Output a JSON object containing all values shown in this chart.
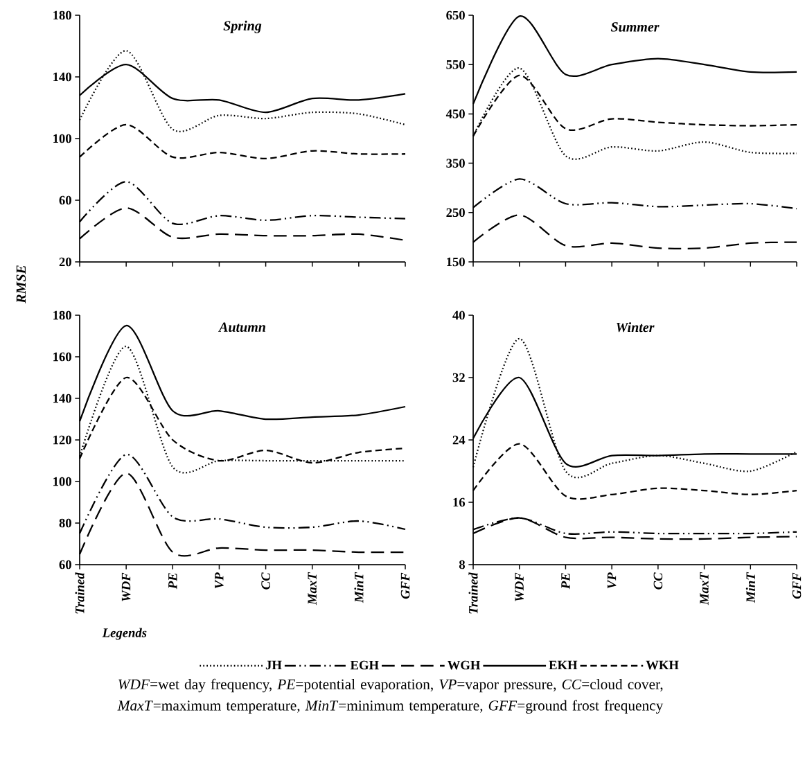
{
  "chart_data": [
    {
      "type": "line",
      "title": "Spring",
      "categories": [
        null,
        null,
        null,
        null,
        null,
        null,
        null,
        null
      ],
      "ylim": [
        20,
        180
      ],
      "yticks": [
        20,
        60,
        100,
        140,
        180
      ],
      "series": [
        {
          "color": "#000000",
          "line_style": "dotted",
          "values": [
            112,
            157,
            106,
            115,
            113,
            117,
            116,
            109
          ]
        },
        {
          "color": "#000000",
          "line_style": "dashdotdot",
          "values": [
            46,
            72,
            45,
            50,
            47,
            50,
            49,
            48
          ]
        },
        {
          "color": "#000000",
          "line_style": "longdashed",
          "values": [
            35,
            55,
            36,
            38,
            37,
            37,
            38,
            34
          ]
        },
        {
          "color": "#000000",
          "line_style": "solid",
          "values": [
            128,
            148,
            126,
            125,
            117,
            126,
            125,
            129
          ]
        },
        {
          "color": "#000000",
          "line_style": "dashed",
          "values": [
            88,
            109,
            88,
            91,
            87,
            92,
            90,
            90
          ]
        }
      ]
    },
    {
      "type": "line",
      "title": "Summer",
      "categories": [
        null,
        null,
        null,
        null,
        null,
        null,
        null,
        null
      ],
      "ylim": [
        150,
        650
      ],
      "yticks": [
        150,
        250,
        350,
        450,
        550,
        650
      ],
      "series": [
        {
          "color": "#000000",
          "line_style": "dotted",
          "values": [
            405,
            543,
            365,
            383,
            375,
            393,
            372,
            370
          ]
        },
        {
          "color": "#000000",
          "line_style": "dashdotdot",
          "values": [
            260,
            318,
            268,
            270,
            262,
            265,
            268,
            258
          ]
        },
        {
          "color": "#000000",
          "line_style": "longdashed",
          "values": [
            190,
            245,
            183,
            188,
            178,
            178,
            188,
            190
          ]
        },
        {
          "color": "#000000",
          "line_style": "solid",
          "values": [
            470,
            648,
            530,
            550,
            562,
            550,
            535,
            535
          ]
        },
        {
          "color": "#000000",
          "line_style": "dashed",
          "values": [
            405,
            528,
            420,
            440,
            433,
            428,
            426,
            428
          ]
        }
      ]
    },
    {
      "type": "line",
      "title": "Autumn",
      "ylabel": "RMSE",
      "legend_title": "Legends",
      "legend": "bottom",
      "categories": [
        "Trained",
        "WDF",
        "PE",
        "VP",
        "CC",
        "MaxT",
        "MinT",
        "GFF"
      ],
      "ylim": [
        60,
        180
      ],
      "yticks": [
        60,
        80,
        100,
        120,
        140,
        160,
        180
      ],
      "series": [
        {
          "name": "JH",
          "color": "#000000",
          "line_style": "dotted",
          "values": [
            112,
            165,
            107,
            110,
            110,
            110,
            110,
            110
          ]
        },
        {
          "name": "EGH",
          "color": "#000000",
          "line_style": "dashdotdot",
          "values": [
            75,
            113,
            83,
            82,
            78,
            78,
            81,
            77
          ]
        },
        {
          "name": "WGH",
          "color": "#000000",
          "line_style": "longdashed",
          "values": [
            65,
            104,
            66,
            68,
            67,
            67,
            66,
            66
          ]
        },
        {
          "name": "EKH",
          "color": "#000000",
          "line_style": "solid",
          "values": [
            129,
            175,
            134,
            134,
            130,
            131,
            132,
            136
          ]
        },
        {
          "name": "WKH",
          "color": "#000000",
          "line_style": "dashed",
          "values": [
            111,
            150,
            120,
            110,
            115,
            109,
            114,
            116
          ]
        }
      ],
      "annotations": [
        "*WDF*=wet day frequency, *PE*=potential evaporation, *VP*=vapor pressure, *CC*=cloud cover, *MaxT*=maximum temperature, *MinT*=minimum temperature, *GFF*=ground frost frequency"
      ]
    },
    {
      "type": "line",
      "title": "Winter",
      "categories": [
        "Trained",
        "WDF",
        "PE",
        "VP",
        "CC",
        "MaxT",
        "MinT",
        "GFF"
      ],
      "ylim": [
        8,
        40
      ],
      "yticks": [
        8,
        16,
        24,
        32,
        40
      ],
      "series": [
        {
          "color": "#000000",
          "line_style": "dotted",
          "values": [
            20.5,
            37,
            20,
            21,
            22,
            21,
            20,
            22.5
          ]
        },
        {
          "color": "#000000",
          "line_style": "dashdotdot",
          "values": [
            12.5,
            14,
            12,
            12.2,
            12,
            12,
            12,
            12.2
          ]
        },
        {
          "color": "#000000",
          "line_style": "longdashed",
          "values": [
            12,
            14,
            11.5,
            11.5,
            11.3,
            11.3,
            11.5,
            11.6
          ]
        },
        {
          "color": "#000000",
          "line_style": "solid",
          "values": [
            24.2,
            32,
            21,
            22,
            22,
            22.2,
            22.2,
            22.2
          ]
        },
        {
          "color": "#000000",
          "line_style": "dashed",
          "values": [
            17.5,
            23.5,
            16.8,
            17,
            17.8,
            17.5,
            17,
            17.5
          ]
        }
      ]
    }
  ]
}
